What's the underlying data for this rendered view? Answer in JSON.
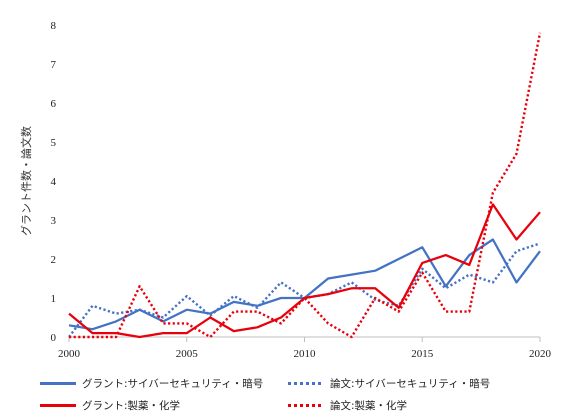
{
  "chart_data": {
    "type": "line",
    "ylabel": "グラント件数・論文数",
    "xlabel": "",
    "x": [
      2000,
      2001,
      2002,
      2003,
      2004,
      2005,
      2006,
      2007,
      2008,
      2009,
      2010,
      2011,
      2012,
      2013,
      2014,
      2015,
      2016,
      2017,
      2018,
      2019,
      2020
    ],
    "xlim": [
      2000,
      2020
    ],
    "ylim": [
      0,
      8
    ],
    "xticks": [
      "2000",
      "2005",
      "2010",
      "2015",
      "2020"
    ],
    "yticks": [
      "0",
      "1",
      "2",
      "3",
      "4",
      "5",
      "6",
      "7",
      "8"
    ],
    "grid": false,
    "legend_position": "bottom",
    "series": [
      {
        "name": "グラント:サイバーセキュリティ・暗号",
        "color": "#4472c4",
        "style": "solid",
        "values": [
          0.3,
          0.2,
          0.4,
          0.7,
          0.4,
          0.7,
          0.6,
          0.9,
          0.8,
          1.0,
          1.0,
          1.5,
          1.6,
          1.7,
          2.0,
          2.3,
          1.3,
          2.1,
          2.5,
          1.4,
          2.2
        ]
      },
      {
        "name": "論文:サイバーセキュリティ・暗号",
        "color": "#4472c4",
        "style": "dotted",
        "values": [
          0.0,
          0.8,
          0.6,
          0.7,
          0.5,
          1.05,
          0.55,
          1.05,
          0.75,
          1.4,
          1.0,
          1.1,
          1.4,
          0.95,
          0.8,
          1.75,
          1.25,
          1.6,
          1.4,
          2.2,
          2.4
        ]
      },
      {
        "name": "グラント:製薬・化学",
        "color": "#e8000b",
        "style": "solid",
        "values": [
          0.6,
          0.1,
          0.1,
          0.0,
          0.1,
          0.1,
          0.5,
          0.15,
          0.25,
          0.5,
          1.0,
          1.1,
          1.25,
          1.25,
          0.75,
          1.9,
          2.1,
          1.85,
          3.4,
          2.5,
          3.2
        ]
      },
      {
        "name": "論文:製薬・化学",
        "color": "#e8000b",
        "style": "dotted",
        "values": [
          0.0,
          0.0,
          0.0,
          1.3,
          0.35,
          0.35,
          0.0,
          0.65,
          0.65,
          0.35,
          1.0,
          0.35,
          0.0,
          1.0,
          0.65,
          1.65,
          0.65,
          0.65,
          3.7,
          4.7,
          7.8
        ]
      }
    ]
  }
}
